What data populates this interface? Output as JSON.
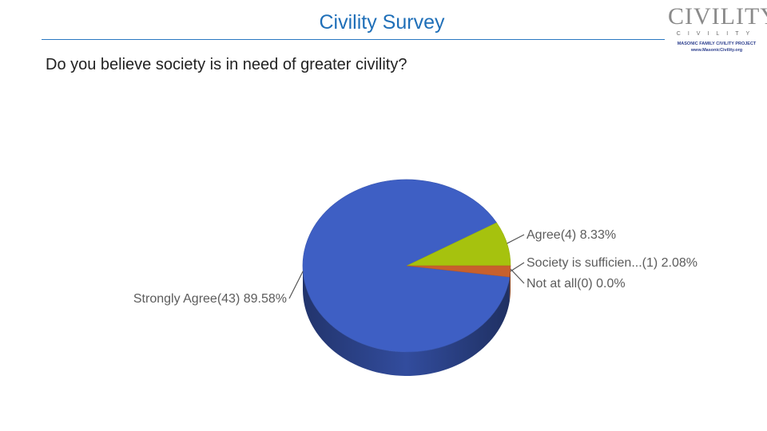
{
  "slide": {
    "title": "Civility Survey",
    "question": "Do you believe society is in need of greater civility?"
  },
  "logo": {
    "wordmark": "CIVILITY",
    "subword": "CIVILITY",
    "line1": "MASONIC FAMILY CIVILITY PROJECT",
    "line2": "www.MasonicCivility.org"
  },
  "colors": {
    "title": "#1f6fb8",
    "rule": "#2a78c2",
    "strongly_agree": "#3e5fc4",
    "agree": "#a6c20e",
    "sufficient": "#c8602c",
    "not_at_all": "#888888"
  },
  "chart_data": {
    "type": "pie",
    "style": "3d",
    "slices": [
      {
        "name": "Strongly Agree",
        "count": 43,
        "value": 89.58,
        "label": "Strongly Agree(43) 89.58%",
        "color": "#3e5fc4"
      },
      {
        "name": "Agree",
        "count": 4,
        "value": 8.33,
        "label": "Agree(4) 8.33%",
        "color": "#a6c20e"
      },
      {
        "name": "Society is sufficien...",
        "count": 1,
        "value": 2.08,
        "label": "Society is sufficien...(1) 2.08%",
        "color": "#c8602c"
      },
      {
        "name": "Not at all",
        "count": 0,
        "value": 0.0,
        "label": "Not at all(0) 0.0%",
        "color": "#888888"
      }
    ],
    "legend": "none"
  }
}
